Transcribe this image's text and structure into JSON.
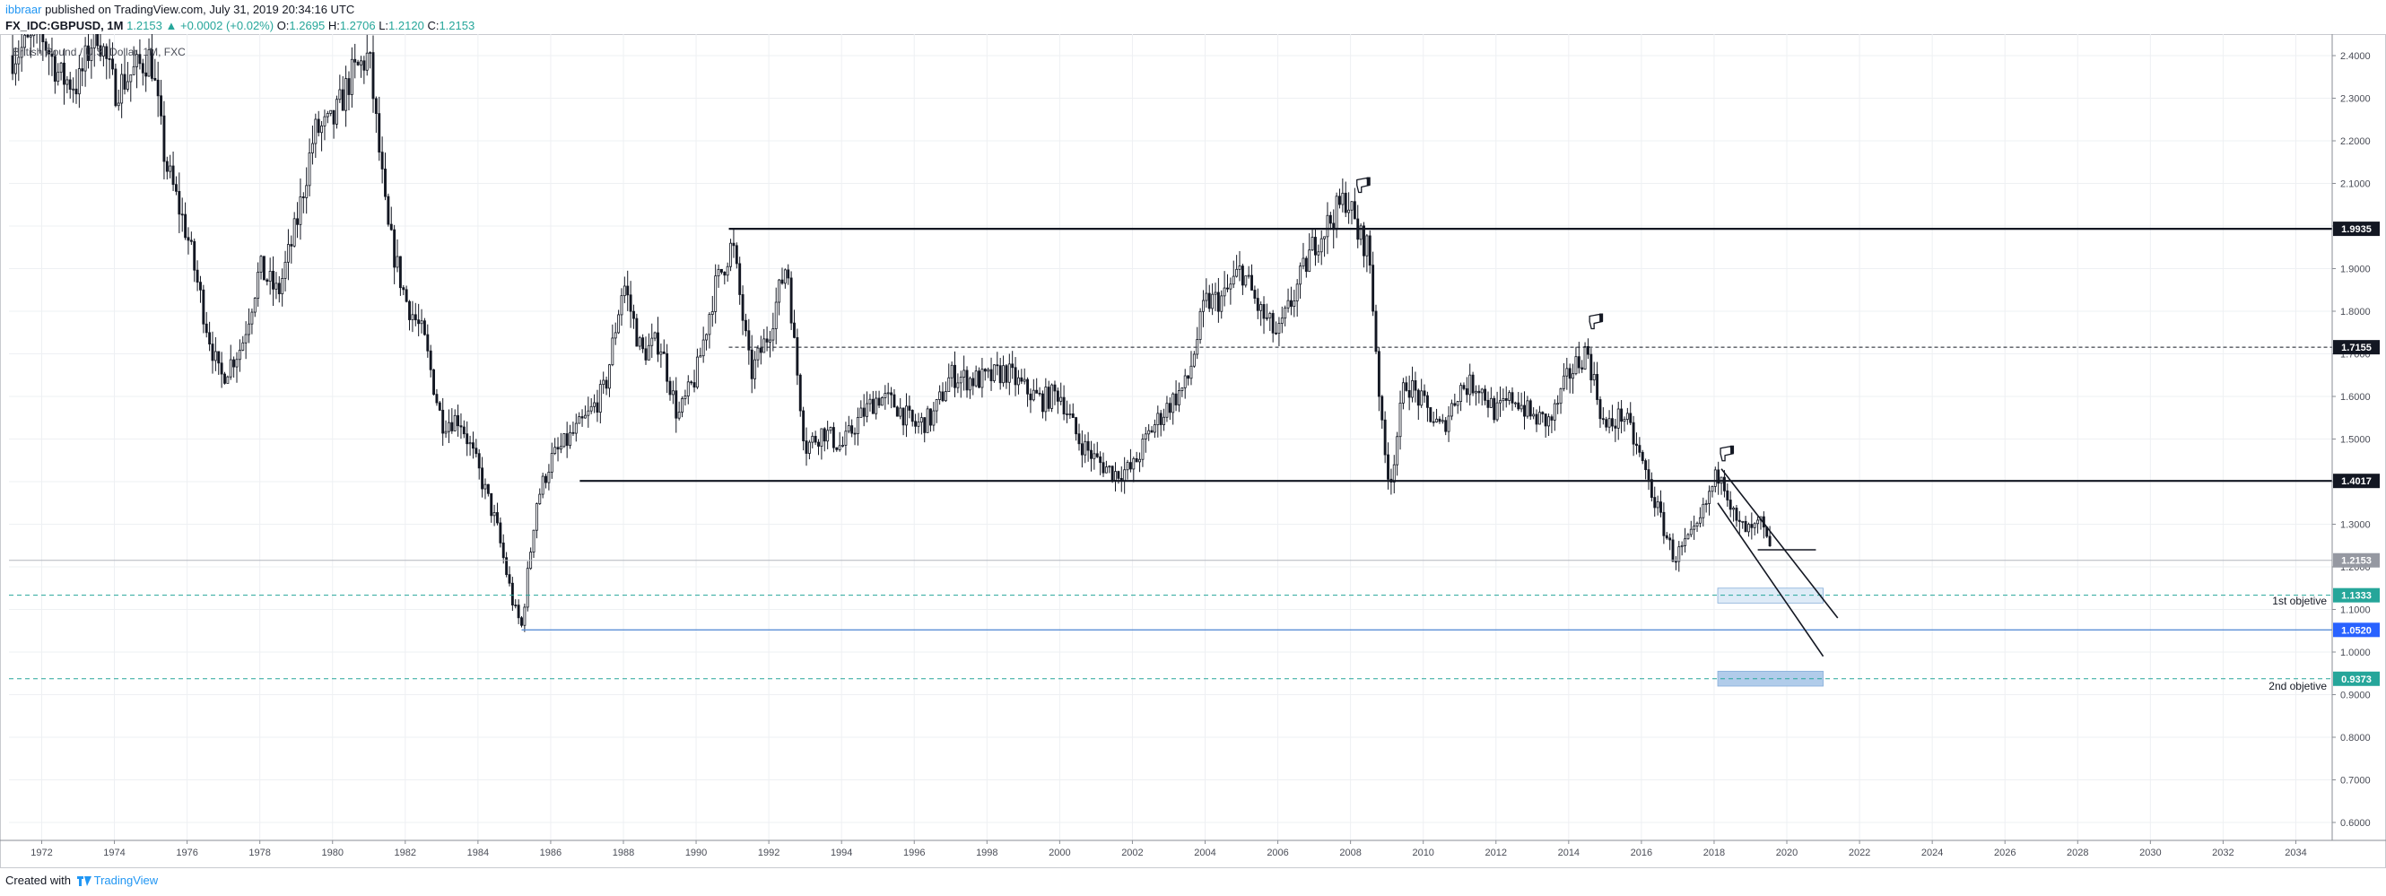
{
  "header": {
    "author": "ibbraar",
    "published_text": " published on TradingView.com, July 31, 2019 20:34:16 UTC",
    "symbol": "FX_IDC:GBPUSD, 1M",
    "last": "1.2153",
    "change_arrow": "▲",
    "change": "+0.0002 (+0.02%)",
    "o_label": "O:",
    "o_value": "1.2695",
    "h_label": "H:",
    "h_value": "1.2706",
    "l_label": "L:",
    "l_value": "1.2120",
    "c_label": "C:",
    "c_value": "1.2153"
  },
  "footer": {
    "created_with": "Created with",
    "brand": "TradingView",
    "logo_icon": "tradingview-logo-icon"
  },
  "chart_data": {
    "type": "candlestick",
    "title": "British Pound / U.S. Dollar, 1M, FXC",
    "x_range": [
      1971.1,
      2035.0
    ],
    "ylim": [
      0.55,
      2.45
    ],
    "grid": true,
    "x_ticks": [
      "1972",
      "1974",
      "1976",
      "1978",
      "1980",
      "1982",
      "1984",
      "1986",
      "1988",
      "1990",
      "1992",
      "1994",
      "1996",
      "1998",
      "2000",
      "2002",
      "2004",
      "2006",
      "2008",
      "2010",
      "2012",
      "2014",
      "2016",
      "2018",
      "2020",
      "2022",
      "2024",
      "2026",
      "2028",
      "2030",
      "2032",
      "2034"
    ],
    "y_ticks": [
      "0.6000",
      "0.7000",
      "0.8000",
      "0.9000",
      "1.0000",
      "1.1000",
      "1.2000",
      "1.3000",
      "1.4000",
      "1.5000",
      "1.6000",
      "1.7000",
      "1.8000",
      "1.9000",
      "2.0000",
      "2.1000",
      "2.2000",
      "2.3000",
      "2.4000"
    ],
    "price_path": [
      [
        1971.2,
        2.4
      ],
      [
        1972.0,
        2.45
      ],
      [
        1972.5,
        2.35
      ],
      [
        1973.0,
        2.33
      ],
      [
        1973.5,
        2.47
      ],
      [
        1974.0,
        2.32
      ],
      [
        1974.5,
        2.36
      ],
      [
        1975.0,
        2.4
      ],
      [
        1975.4,
        2.15
      ],
      [
        1976.0,
        1.98
      ],
      [
        1976.5,
        1.78
      ],
      [
        1976.9,
        1.64
      ],
      [
        1977.5,
        1.72
      ],
      [
        1978.0,
        1.9
      ],
      [
        1978.5,
        1.84
      ],
      [
        1979.0,
        2.0
      ],
      [
        1979.5,
        2.22
      ],
      [
        1980.0,
        2.24
      ],
      [
        1980.5,
        2.35
      ],
      [
        1981.0,
        2.4
      ],
      [
        1981.5,
        2.0
      ],
      [
        1982.0,
        1.83
      ],
      [
        1982.5,
        1.74
      ],
      [
        1983.0,
        1.54
      ],
      [
        1983.5,
        1.55
      ],
      [
        1984.0,
        1.43
      ],
      [
        1984.5,
        1.3
      ],
      [
        1985.0,
        1.1
      ],
      [
        1985.2,
        1.06
      ],
      [
        1985.6,
        1.35
      ],
      [
        1986.0,
        1.45
      ],
      [
        1986.5,
        1.5
      ],
      [
        1987.0,
        1.55
      ],
      [
        1987.5,
        1.62
      ],
      [
        1988.0,
        1.87
      ],
      [
        1988.5,
        1.7
      ],
      [
        1989.0,
        1.73
      ],
      [
        1989.5,
        1.55
      ],
      [
        1990.0,
        1.65
      ],
      [
        1990.5,
        1.85
      ],
      [
        1991.0,
        1.96
      ],
      [
        1991.5,
        1.65
      ],
      [
        1992.0,
        1.75
      ],
      [
        1992.5,
        1.92
      ],
      [
        1992.7,
        1.72
      ],
      [
        1993.0,
        1.48
      ],
      [
        1993.5,
        1.52
      ],
      [
        1994.0,
        1.48
      ],
      [
        1994.5,
        1.55
      ],
      [
        1995.0,
        1.6
      ],
      [
        1995.5,
        1.58
      ],
      [
        1996.0,
        1.53
      ],
      [
        1996.5,
        1.55
      ],
      [
        1997.0,
        1.65
      ],
      [
        1997.5,
        1.64
      ],
      [
        1998.0,
        1.64
      ],
      [
        1998.5,
        1.66
      ],
      [
        1999.0,
        1.62
      ],
      [
        1999.5,
        1.59
      ],
      [
        2000.0,
        1.61
      ],
      [
        2000.5,
        1.5
      ],
      [
        2001.0,
        1.45
      ],
      [
        2001.5,
        1.42
      ],
      [
        2002.0,
        1.43
      ],
      [
        2002.5,
        1.52
      ],
      [
        2003.0,
        1.58
      ],
      [
        2003.5,
        1.63
      ],
      [
        2004.0,
        1.82
      ],
      [
        2004.5,
        1.83
      ],
      [
        2005.0,
        1.9
      ],
      [
        2005.5,
        1.8
      ],
      [
        2006.0,
        1.74
      ],
      [
        2006.5,
        1.85
      ],
      [
        2007.0,
        1.96
      ],
      [
        2007.5,
        2.02
      ],
      [
        2007.9,
        2.07
      ],
      [
        2008.2,
        1.98
      ],
      [
        2008.5,
        1.95
      ],
      [
        2008.9,
        1.48
      ],
      [
        2009.1,
        1.4
      ],
      [
        2009.5,
        1.64
      ],
      [
        2010.0,
        1.58
      ],
      [
        2010.5,
        1.52
      ],
      [
        2011.0,
        1.62
      ],
      [
        2011.5,
        1.63
      ],
      [
        2012.0,
        1.56
      ],
      [
        2012.5,
        1.6
      ],
      [
        2013.0,
        1.55
      ],
      [
        2013.5,
        1.54
      ],
      [
        2014.0,
        1.65
      ],
      [
        2014.5,
        1.71
      ],
      [
        2015.0,
        1.52
      ],
      [
        2015.5,
        1.56
      ],
      [
        2016.0,
        1.45
      ],
      [
        2016.5,
        1.32
      ],
      [
        2016.9,
        1.22
      ],
      [
        2017.5,
        1.28
      ],
      [
        2018.0,
        1.4
      ],
      [
        2018.2,
        1.43
      ],
      [
        2018.6,
        1.3
      ],
      [
        2019.0,
        1.28
      ],
      [
        2019.3,
        1.3
      ],
      [
        2019.6,
        1.2153
      ]
    ],
    "horizontal_levels": [
      {
        "price": 1.9935,
        "label": "1.9935",
        "style": "solid",
        "from_year": 1990.9
      },
      {
        "price": 1.7155,
        "label": "1.7155",
        "style": "dashed",
        "from_year": 1990.9
      },
      {
        "price": 1.4017,
        "label": "1.4017",
        "style": "solid",
        "from_year": 1986.8
      },
      {
        "price": 1.1333,
        "label": "1.1333",
        "style": "dashed-teal",
        "from_year": 1971.1
      },
      {
        "price": 1.052,
        "label": "1.0520",
        "style": "blue",
        "from_year": 1985.2
      },
      {
        "price": 0.9373,
        "label": "0.9373",
        "style": "dashed-teal",
        "from_year": 1971.1
      }
    ],
    "last_price_label": "1.2153",
    "annotations": [
      {
        "text": "1st objetive",
        "price": 1.12
      },
      {
        "text": "2nd objetive",
        "price": 0.92
      }
    ],
    "objective_boxes": [
      {
        "from_year": 2018.1,
        "to_year": 2021.0,
        "low": 1.115,
        "high": 1.15,
        "color": "#dbe9f7"
      },
      {
        "from_year": 2018.1,
        "to_year": 2021.0,
        "low": 0.92,
        "high": 0.955,
        "color": "#a9c7e8"
      }
    ],
    "trend_lines": [
      [
        2018.2,
        1.43,
        2021.4,
        1.08
      ],
      [
        2018.1,
        1.35,
        2021.0,
        0.99
      ],
      [
        2019.2,
        1.24,
        2020.8,
        1.24
      ]
    ],
    "thumbs_down_markers": [
      [
        2008.2,
        2.1
      ],
      [
        2014.6,
        1.78
      ],
      [
        2018.2,
        1.47
      ]
    ]
  }
}
